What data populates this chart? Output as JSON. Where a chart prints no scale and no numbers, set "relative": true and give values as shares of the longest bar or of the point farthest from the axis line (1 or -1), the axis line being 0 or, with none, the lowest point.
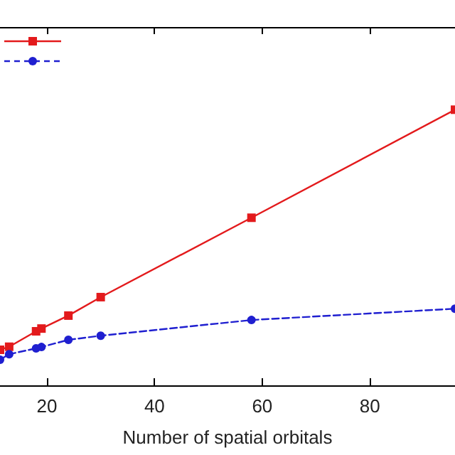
{
  "chart_data": {
    "type": "line",
    "xlabel": "Number of spatial orbitals",
    "relative": true,
    "xlim": [
      11.3,
      95.8
    ],
    "xticks": [
      20,
      40,
      60,
      80
    ],
    "grid": false,
    "series": [
      {
        "color": "#e31a1c",
        "marker": "square",
        "line_style": "solid",
        "x": [
          11.3,
          13,
          18,
          19,
          24,
          30,
          58,
          95.8
        ],
        "values": [
          0.129,
          0.14,
          0.196,
          0.206,
          0.253,
          0.32,
          0.608,
          1
        ]
      },
      {
        "color": "#1f1fd0",
        "marker": "circle",
        "line_style": "dashed",
        "x": [
          11.3,
          13,
          18,
          19,
          24,
          30,
          58,
          95.8
        ],
        "values": [
          0.093,
          0.113,
          0.134,
          0.139,
          0.165,
          0.18,
          0.237,
          0.278
        ]
      }
    ]
  }
}
